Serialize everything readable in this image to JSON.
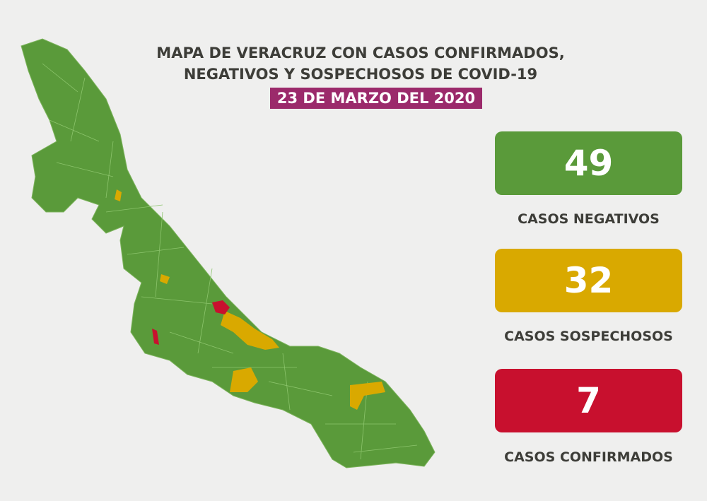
{
  "title_line1": "MAPA DE VERACRUZ CON CASOS CONFIRMADOS,",
  "title_line2": "NEGATIVOS Y SOSPECHOSOS DE COVID-19",
  "date": "23 DE MARZO DEL 2020",
  "stats": [
    {
      "value": "49",
      "label": "CASOS NEGATIVOS",
      "color": "#5a9a3a"
    },
    {
      "value": "32",
      "label": "CASOS SOSPECHOSOS",
      "color": "#d9a900"
    },
    {
      "value": "7",
      "label": "CASOS CONFIRMADOS",
      "color": "#c8102e"
    }
  ],
  "colors": {
    "background": "#efefee",
    "date_badge": "#9b2a6b",
    "map_default": "#5a9a3a"
  }
}
